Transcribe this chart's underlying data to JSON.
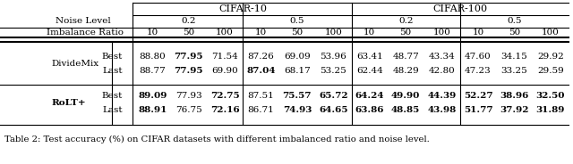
{
  "title": "Table 2: Test accuracy (%) on CIFAR datasets with different imbalanced ratio and noise level.",
  "cifar_labels": [
    "CIFAR-10",
    "CIFAR-100"
  ],
  "noise_label": "Noise Level",
  "imbalance_label": "Imbalance Ratio",
  "noise_levels": [
    "0.2",
    "0.5",
    "0.2",
    "0.5"
  ],
  "imbalance_ratios": [
    "10",
    "50",
    "100",
    "10",
    "50",
    "100",
    "10",
    "50",
    "100",
    "10",
    "50",
    "100"
  ],
  "methods": [
    "DivideMix",
    "RoLT+"
  ],
  "method_bold": [
    false,
    true
  ],
  "sub_labels": [
    "Best",
    "Last"
  ],
  "data": [
    [
      [
        "88.80",
        "77.95",
        "71.54",
        "87.26",
        "69.09",
        "53.96",
        "63.41",
        "48.77",
        "43.34",
        "47.60",
        "34.15",
        "29.92"
      ],
      [
        "88.77",
        "77.95",
        "69.90",
        "87.04",
        "68.17",
        "53.25",
        "62.44",
        "48.29",
        "42.80",
        "47.23",
        "33.25",
        "29.59"
      ]
    ],
    [
      [
        "89.09",
        "77.93",
        "72.75",
        "87.51",
        "75.57",
        "65.72",
        "64.24",
        "49.90",
        "44.39",
        "52.27",
        "38.96",
        "32.50"
      ],
      [
        "88.91",
        "76.75",
        "72.16",
        "86.71",
        "74.93",
        "64.65",
        "63.86",
        "48.85",
        "43.98",
        "51.77",
        "37.92",
        "31.89"
      ]
    ]
  ],
  "bold": [
    [
      [
        false,
        true,
        false,
        false,
        false,
        false,
        false,
        false,
        false,
        false,
        false,
        false
      ],
      [
        false,
        true,
        false,
        true,
        false,
        false,
        false,
        false,
        false,
        false,
        false,
        false
      ]
    ],
    [
      [
        true,
        false,
        true,
        false,
        true,
        true,
        true,
        true,
        true,
        true,
        true,
        true
      ],
      [
        true,
        false,
        true,
        false,
        true,
        true,
        true,
        true,
        true,
        true,
        true,
        true
      ]
    ]
  ],
  "bg_color": "#ffffff",
  "figsize": [
    6.4,
    1.84
  ],
  "dpi": 100
}
